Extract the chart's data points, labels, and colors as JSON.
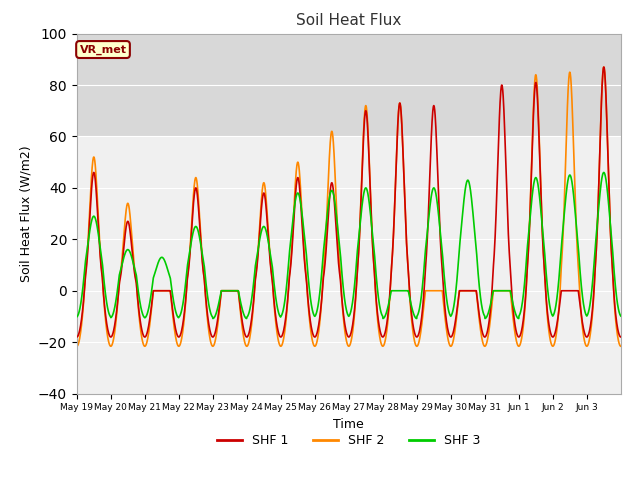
{
  "title": "Soil Heat Flux",
  "xlabel": "Time",
  "ylabel": "Soil Heat Flux (W/m2)",
  "ylim": [
    -40,
    100
  ],
  "shaded_region": [
    60,
    100
  ],
  "shaded_color": "#d8d8d8",
  "background_color": "#ffffff",
  "plot_bg_color": "#f0f0f0",
  "legend_label": "VR_met",
  "legend_border_color": "#8B0000",
  "legend_bg_color": "#ffffcc",
  "line_colors": {
    "SHF 1": "#cc0000",
    "SHF 2": "#ff8800",
    "SHF 3": "#00cc00"
  },
  "line_widths": {
    "SHF 1": 1.2,
    "SHF 2": 1.2,
    "SHF 3": 1.2
  },
  "yticks": [
    -40,
    -20,
    0,
    20,
    40,
    60,
    80,
    100
  ],
  "n_days": 16,
  "start_day": 19,
  "points_per_day": 144,
  "day_labels": [
    "May 19",
    "May 20",
    "May 21",
    "May 22",
    "May 23",
    "May 24",
    "May 25",
    "May 26",
    "May 27",
    "May 28",
    "May 29",
    "May 30",
    "May 31",
    "Jun 1",
    "Jun 2",
    "Jun 3"
  ],
  "day_peak_amps_shf1": [
    46,
    27,
    0,
    40,
    0,
    38,
    44,
    42,
    70,
    73,
    72,
    0,
    80,
    81,
    0,
    87
  ],
  "day_peak_amps_shf2": [
    52,
    34,
    0,
    44,
    0,
    42,
    50,
    62,
    72,
    73,
    0,
    0,
    0,
    84,
    85,
    87
  ],
  "day_peak_amps_shf3": [
    29,
    16,
    13,
    25,
    0,
    25,
    38,
    39,
    40,
    0,
    40,
    43,
    0,
    44,
    45,
    46
  ],
  "night_amp": -18
}
